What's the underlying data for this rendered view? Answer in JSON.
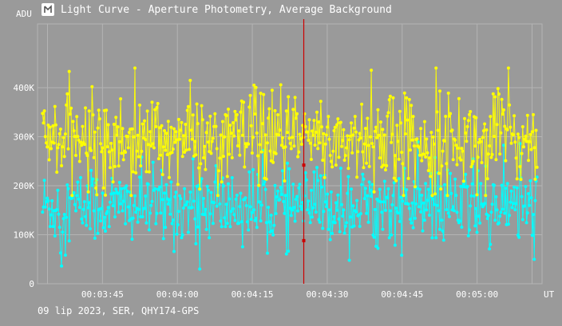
{
  "window": {
    "title": "Light Curve - Aperture Photometry, Average Background",
    "icon": "sharpcap-logo-icon"
  },
  "footer": {
    "text": "09 lip 2023, SER, QHY174-GPS"
  },
  "colors": {
    "background": "#9a9a9a",
    "grid": "#b4b4b4",
    "axis_text": "#ffffff",
    "cursor": "#cc0000",
    "series_1": "#ffff00",
    "series_2": "#00ffff"
  },
  "chart_data": {
    "type": "line",
    "ylabel": "ADU",
    "xlabel": "UT",
    "y_ticks": [
      "0",
      "100K",
      "200K",
      "300K",
      "400K"
    ],
    "y_tick_values": [
      0,
      100000,
      200000,
      300000,
      400000
    ],
    "ylim": [
      0,
      530000
    ],
    "x_ticks": [
      "00:03:45",
      "00:04:00",
      "00:04:15",
      "00:04:30",
      "00:04:45",
      "00:05:00"
    ],
    "x_tick_seconds": [
      225,
      240,
      255,
      270,
      285,
      300
    ],
    "xlim_seconds": [
      212,
      313
    ],
    "cursor": {
      "x_seconds": 265.3,
      "y_values": [
        242000,
        88000
      ]
    },
    "grid": true,
    "series": [
      {
        "color": "#ffff00",
        "mean": 295000,
        "noise": 45000,
        "min": 180000,
        "max": 440000
      },
      {
        "color": "#00ffff",
        "mean": 158000,
        "noise": 38000,
        "min": 30000,
        "max": 300000
      }
    ]
  }
}
